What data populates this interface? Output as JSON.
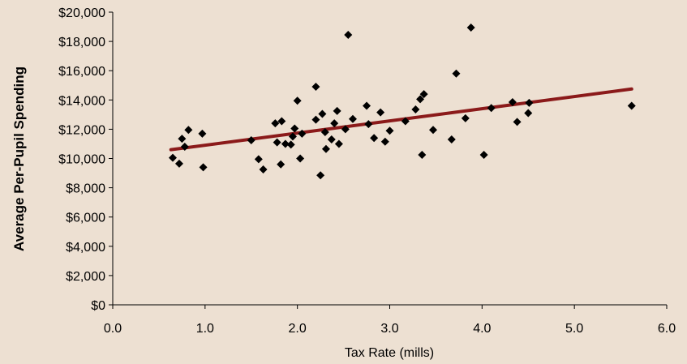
{
  "colors": {
    "background": "#ede0d2",
    "axis": "#000000",
    "marker": "#000000",
    "trendline": "#8b1a1a"
  },
  "chart_data": {
    "type": "scatter",
    "title": "",
    "xlabel": "Tax Rate (mills)",
    "ylabel": "Average Per-Pupil Spending",
    "xlim": [
      0,
      6
    ],
    "ylim": [
      0,
      20000
    ],
    "grid": false,
    "legend": "none",
    "x_ticks": [
      0,
      1,
      2,
      3,
      4,
      5,
      6
    ],
    "x_tick_labels": [
      "0.0",
      "1.0",
      "2.0",
      "3.0",
      "4.0",
      "5.0",
      "6.0"
    ],
    "y_ticks": [
      0,
      2000,
      4000,
      6000,
      8000,
      10000,
      12000,
      14000,
      16000,
      18000,
      20000
    ],
    "y_tick_labels": [
      "$0",
      "$2,000",
      "$4,000",
      "$6,000",
      "$8,000",
      "$10,000",
      "$12,000",
      "$14,000",
      "$16,000",
      "$18,000",
      "$20,000"
    ],
    "marker": "diamond",
    "points": [
      [
        0.65,
        10050
      ],
      [
        0.72,
        9650
      ],
      [
        0.75,
        11350
      ],
      [
        0.78,
        10800
      ],
      [
        0.82,
        11950
      ],
      [
        0.97,
        11700
      ],
      [
        0.98,
        9400
      ],
      [
        1.5,
        11250
      ],
      [
        1.58,
        9950
      ],
      [
        1.63,
        9250
      ],
      [
        1.76,
        12400
      ],
      [
        1.78,
        11100
      ],
      [
        1.82,
        9600
      ],
      [
        1.83,
        12550
      ],
      [
        1.87,
        11000
      ],
      [
        1.93,
        10950
      ],
      [
        1.95,
        11500
      ],
      [
        1.97,
        12050
      ],
      [
        2.0,
        13950
      ],
      [
        2.03,
        10000
      ],
      [
        2.05,
        11700
      ],
      [
        2.2,
        14900
      ],
      [
        2.2,
        12650
      ],
      [
        2.25,
        8850
      ],
      [
        2.27,
        13050
      ],
      [
        2.3,
        11800
      ],
      [
        2.31,
        10650
      ],
      [
        2.37,
        11300
      ],
      [
        2.4,
        12400
      ],
      [
        2.43,
        13250
      ],
      [
        2.45,
        11000
      ],
      [
        2.52,
        12000
      ],
      [
        2.55,
        18450
      ],
      [
        2.6,
        12700
      ],
      [
        2.75,
        13600
      ],
      [
        2.77,
        12350
      ],
      [
        2.83,
        11400
      ],
      [
        2.9,
        13150
      ],
      [
        2.95,
        11150
      ],
      [
        3.0,
        11900
      ],
      [
        3.17,
        12550
      ],
      [
        3.28,
        13350
      ],
      [
        3.33,
        14050
      ],
      [
        3.35,
        10250
      ],
      [
        3.37,
        14400
      ],
      [
        3.47,
        11950
      ],
      [
        3.67,
        11300
      ],
      [
        3.72,
        15800
      ],
      [
        3.82,
        12750
      ],
      [
        3.88,
        18950
      ],
      [
        4.02,
        10250
      ],
      [
        4.1,
        13450
      ],
      [
        4.33,
        13850
      ],
      [
        4.38,
        12500
      ],
      [
        4.5,
        13100
      ],
      [
        4.51,
        13800
      ],
      [
        5.62,
        13600
      ]
    ],
    "trendline": {
      "type": "linear",
      "x": [
        0.63,
        5.62
      ],
      "y": [
        10600,
        14750
      ]
    }
  }
}
